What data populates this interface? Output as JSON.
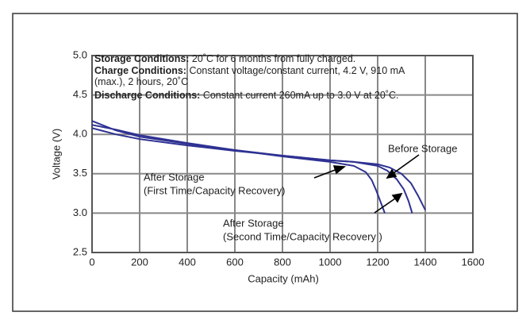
{
  "chart_data": {
    "type": "line",
    "xlabel": "Capacity (mAh)",
    "ylabel": "Voltage (V)",
    "xlim": [
      0,
      1600
    ],
    "ylim": [
      2.5,
      5.0
    ],
    "xticks": [
      0,
      200,
      400,
      600,
      800,
      1000,
      1200,
      1400,
      1600
    ],
    "yticks": [
      {
        "value": 2.5,
        "label": "2.5"
      },
      {
        "value": 3.0,
        "label": "3.0"
      },
      {
        "value": 3.5,
        "label": "3.5"
      },
      {
        "value": 4.0,
        "label": "4.0"
      },
      {
        "value": 4.5,
        "label": "4.5"
      },
      {
        "value": 5.0,
        "label": "5.0"
      }
    ],
    "grid": true,
    "conditions": [
      {
        "label": "Storage Conditions:",
        "text": [
          " 20˚C for 6 months from fully charged."
        ]
      },
      {
        "label": "Charge Conditions:",
        "text": [
          " Constant voltage/constant current, 4.2 V, 910 mA",
          "(max.), 2 hours, 20˚C"
        ]
      },
      {
        "label": "Discharge Conditions:",
        "text": [
          " Constant current 260mA up to 3.0 V at 20˚C."
        ]
      }
    ],
    "annotations": [
      {
        "lines": [
          "Before Storage"
        ]
      },
      {
        "lines": [
          "After Storage",
          "(First Time/Capacity Recovery)"
        ]
      },
      {
        "lines": [
          "After Storage",
          "(Second Time/Capacity Recovery )"
        ]
      }
    ],
    "series": [
      {
        "color": "#2e3192",
        "x": [
          0,
          100,
          200,
          400,
          600,
          800,
          1000,
          1100,
          1200,
          1250,
          1300,
          1340,
          1370,
          1400
        ],
        "values": [
          4.12,
          4.06,
          3.99,
          3.89,
          3.8,
          3.73,
          3.67,
          3.65,
          3.62,
          3.58,
          3.5,
          3.38,
          3.22,
          3.04
        ]
      },
      {
        "color": "#2e3192",
        "x": [
          0,
          100,
          200,
          400,
          600,
          800,
          1000,
          1100,
          1200,
          1240,
          1280,
          1310,
          1330,
          1345
        ],
        "values": [
          4.08,
          4.0,
          3.94,
          3.86,
          3.79,
          3.73,
          3.67,
          3.65,
          3.6,
          3.54,
          3.43,
          3.3,
          3.15,
          3.0
        ]
      },
      {
        "color": "#2e3192",
        "x": [
          0,
          100,
          200,
          400,
          600,
          800,
          1000,
          1100,
          1150,
          1175,
          1195,
          1215,
          1230
        ],
        "values": [
          4.17,
          4.05,
          3.97,
          3.88,
          3.8,
          3.72,
          3.65,
          3.6,
          3.52,
          3.42,
          3.28,
          3.12,
          3.0
        ]
      }
    ]
  }
}
